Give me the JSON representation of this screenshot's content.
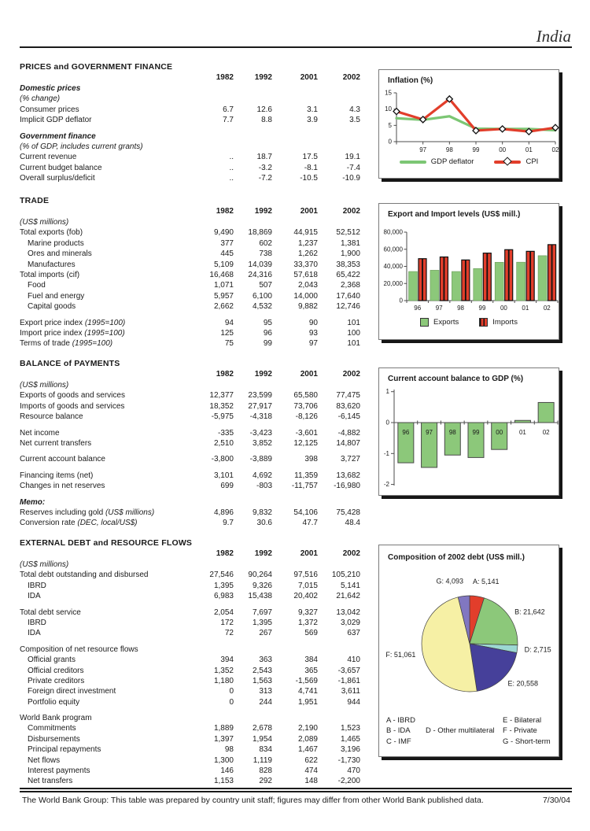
{
  "page": {
    "title": "India",
    "footer_note": "The World Bank Group: This table was prepared by country unit staff; figures may differ from other World Bank published data.",
    "footer_date": "7/30/04"
  },
  "columns": [
    "1982",
    "1992",
    "2001",
    "2002"
  ],
  "sections": [
    {
      "title": "PRICES and GOVERNMENT FINANCE",
      "rows": [
        {
          "label": "Domestic prices",
          "cls": "bi"
        },
        {
          "label": "(% change)",
          "cls": "i"
        },
        {
          "label": "Consumer prices",
          "values": [
            "6.7",
            "12.6",
            "3.1",
            "4.3"
          ]
        },
        {
          "label": "Implicit GDP deflator",
          "values": [
            "7.7",
            "8.8",
            "3.9",
            "3.5"
          ]
        },
        {
          "gap": true
        },
        {
          "label": "Government finance",
          "cls": "bi"
        },
        {
          "label": "(% of GDP, includes current grants)",
          "cls": "i"
        },
        {
          "label": "Current revenue",
          "values": [
            "..",
            "18.7",
            "17.5",
            "19.1"
          ]
        },
        {
          "label": "Current budget balance",
          "values": [
            "..",
            "-3.2",
            "-8.1",
            "-7.4"
          ]
        },
        {
          "label": "Overall surplus/deficit",
          "values": [
            "..",
            "-7.2",
            "-10.5",
            "-10.9"
          ]
        }
      ]
    },
    {
      "title": "TRADE",
      "rows": [
        {
          "label": "(US$ millions)",
          "cls": "i"
        },
        {
          "label": "Total exports (fob)",
          "values": [
            "9,490",
            "18,869",
            "44,915",
            "52,512"
          ]
        },
        {
          "label": "Marine products",
          "cls": "ind",
          "values": [
            "377",
            "602",
            "1,237",
            "1,381"
          ]
        },
        {
          "label": "Ores and minerals",
          "cls": "ind",
          "values": [
            "445",
            "738",
            "1,262",
            "1,900"
          ]
        },
        {
          "label": "Manufactures",
          "cls": "ind",
          "values": [
            "5,109",
            "14,039",
            "33,370",
            "38,353"
          ]
        },
        {
          "label": "Total imports (cif)",
          "values": [
            "16,468",
            "24,316",
            "57,618",
            "65,422"
          ]
        },
        {
          "label": "Food",
          "cls": "ind",
          "values": [
            "1,071",
            "507",
            "2,043",
            "2,368"
          ]
        },
        {
          "label": "Fuel and energy",
          "cls": "ind",
          "values": [
            "5,957",
            "6,100",
            "14,000",
            "17,640"
          ]
        },
        {
          "label": "Capital goods",
          "cls": "ind",
          "values": [
            "2,662",
            "4,532",
            "9,882",
            "12,746"
          ]
        },
        {
          "gap": true
        },
        {
          "label": "Export price index ",
          "suffix": "(1995=100)",
          "values": [
            "94",
            "95",
            "90",
            "101"
          ]
        },
        {
          "label": "Import price index ",
          "suffix": "(1995=100)",
          "values": [
            "125",
            "96",
            "93",
            "100"
          ]
        },
        {
          "label": "Terms of trade ",
          "suffix": "(1995=100)",
          "values": [
            "75",
            "99",
            "97",
            "101"
          ]
        }
      ]
    },
    {
      "title": "BALANCE of PAYMENTS",
      "rows": [
        {
          "label": "(US$ millions)",
          "cls": "i"
        },
        {
          "label": "Exports of goods and services",
          "values": [
            "12,377",
            "23,599",
            "65,580",
            "77,475"
          ]
        },
        {
          "label": "Imports of goods and services",
          "values": [
            "18,352",
            "27,917",
            "73,706",
            "83,620"
          ]
        },
        {
          "label": "Resource balance",
          "values": [
            "-5,975",
            "-4,318",
            "-8,126",
            "-6,145"
          ]
        },
        {
          "gap": true
        },
        {
          "label": "Net income",
          "values": [
            "-335",
            "-3,423",
            "-3,601",
            "-4,882"
          ]
        },
        {
          "label": "Net current transfers",
          "values": [
            "2,510",
            "3,852",
            "12,125",
            "14,807"
          ]
        },
        {
          "gap": true
        },
        {
          "label": "Current account balance",
          "values": [
            "-3,800",
            "-3,889",
            "398",
            "3,727"
          ]
        },
        {
          "gap": true
        },
        {
          "label": "Financing items (net)",
          "values": [
            "3,101",
            "4,692",
            "11,359",
            "13,682"
          ]
        },
        {
          "label": "Changes in net reserves",
          "values": [
            "699",
            "-803",
            "-11,757",
            "-16,980"
          ]
        },
        {
          "gap": true
        },
        {
          "label": "Memo:",
          "cls": "bi"
        },
        {
          "label": "Reserves including gold ",
          "suffix": "(US$ millions)",
          "values": [
            "4,896",
            "9,832",
            "54,106",
            "75,428"
          ]
        },
        {
          "label": "Conversion rate ",
          "suffix": "(DEC, local/US$)",
          "values": [
            "9.7",
            "30.6",
            "47.7",
            "48.4"
          ]
        }
      ]
    },
    {
      "title": "EXTERNAL DEBT and RESOURCE FLOWS",
      "rows": [
        {
          "label": "(US$ millions)",
          "cls": "i"
        },
        {
          "label": "Total debt outstanding and disbursed",
          "values": [
            "27,546",
            "90,264",
            "97,516",
            "105,210"
          ]
        },
        {
          "label": "IBRD",
          "cls": "ind",
          "values": [
            "1,395",
            "9,326",
            "7,015",
            "5,141"
          ]
        },
        {
          "label": "IDA",
          "cls": "ind",
          "values": [
            "6,983",
            "15,438",
            "20,402",
            "21,642"
          ]
        },
        {
          "gap": true
        },
        {
          "label": "Total debt service",
          "values": [
            "2,054",
            "7,697",
            "9,327",
            "13,042"
          ]
        },
        {
          "label": "IBRD",
          "cls": "ind",
          "values": [
            "172",
            "1,395",
            "1,372",
            "3,029"
          ]
        },
        {
          "label": "IDA",
          "cls": "ind",
          "values": [
            "72",
            "267",
            "569",
            "637"
          ]
        },
        {
          "gap": true
        },
        {
          "label": "Composition of net resource flows"
        },
        {
          "label": "Official grants",
          "cls": "ind",
          "values": [
            "394",
            "363",
            "384",
            "410"
          ]
        },
        {
          "label": "Official creditors",
          "cls": "ind",
          "values": [
            "1,352",
            "2,543",
            "365",
            "-3,657"
          ]
        },
        {
          "label": "Private creditors",
          "cls": "ind",
          "values": [
            "1,180",
            "1,563",
            "-1,569",
            "-1,861"
          ]
        },
        {
          "label": "Foreign direct investment",
          "cls": "ind",
          "values": [
            "0",
            "313",
            "4,741",
            "3,611"
          ]
        },
        {
          "label": "Portfolio equity",
          "cls": "ind",
          "values": [
            "0",
            "244",
            "1,951",
            "944"
          ]
        },
        {
          "gap": true
        },
        {
          "label": "World Bank program"
        },
        {
          "label": "Commitments",
          "cls": "ind",
          "values": [
            "1,889",
            "2,678",
            "2,190",
            "1,523"
          ]
        },
        {
          "label": "Disbursements",
          "cls": "ind",
          "values": [
            "1,397",
            "1,954",
            "2,089",
            "1,465"
          ]
        },
        {
          "label": "Principal repayments",
          "cls": "ind",
          "values": [
            "98",
            "834",
            "1,467",
            "3,196"
          ]
        },
        {
          "label": "Net flows",
          "cls": "ind",
          "values": [
            "1,300",
            "1,119",
            "622",
            "-1,730"
          ]
        },
        {
          "label": "Interest payments",
          "cls": "ind",
          "values": [
            "146",
            "828",
            "474",
            "470"
          ]
        },
        {
          "label": "Net transfers",
          "cls": "ind",
          "values": [
            "1,153",
            "292",
            "148",
            "-2,200"
          ]
        }
      ]
    }
  ],
  "chart_data": [
    {
      "type": "line",
      "title": "Inflation (%)",
      "x": [
        "96",
        "97",
        "98",
        "99",
        "00",
        "01",
        "02"
      ],
      "x_labels": [
        "",
        "97",
        "98",
        "99",
        "00",
        "01",
        "02"
      ],
      "ylim": [
        0,
        15
      ],
      "yticks": [
        0,
        5,
        10,
        15
      ],
      "ytick_labels": [
        "0",
        "5",
        "10",
        "15"
      ],
      "legend_position": "bottom",
      "series": [
        {
          "name": "GDP deflator",
          "color": "#7CC674",
          "values": [
            7.2,
            6.7,
            7.8,
            4.0,
            3.9,
            3.9,
            3.5
          ]
        },
        {
          "name": "CPI",
          "color": "#E23E2B",
          "marker": "diamond",
          "values": [
            9.3,
            6.8,
            13.1,
            3.4,
            3.9,
            3.1,
            4.3
          ]
        }
      ]
    },
    {
      "type": "bar",
      "title": "Export and Import levels (US$ mill.)",
      "categories": [
        "96",
        "97",
        "98",
        "99",
        "00",
        "01",
        "02"
      ],
      "ylim": [
        0,
        80000
      ],
      "yticks": [
        0,
        20000,
        40000,
        60000,
        80000
      ],
      "ytick_labels": [
        "0",
        "20,000",
        "40,000",
        "60,000",
        "80,000"
      ],
      "legend_position": "bottom",
      "series": [
        {
          "name": "Exports",
          "color": "#8CC87A",
          "values": [
            34000,
            35500,
            34000,
            37500,
            44800,
            44900,
            52500
          ]
        },
        {
          "name": "Imports",
          "color": "#E23E2B",
          "striped": true,
          "values": [
            49000,
            51000,
            47500,
            55500,
            59500,
            57600,
            65400
          ]
        }
      ]
    },
    {
      "type": "bar",
      "title": "Current account balance to GDP (%)",
      "categories": [
        "96",
        "97",
        "98",
        "99",
        "00",
        "01",
        "02"
      ],
      "ylim": [
        -2,
        1
      ],
      "yticks": [
        1,
        0,
        -1,
        -2
      ],
      "ytick_labels": [
        "1",
        "0",
        "-1",
        "-2"
      ],
      "color": "#8CC87A",
      "values": [
        -1.3,
        -1.45,
        -1.05,
        -1.13,
        -0.87,
        0.07,
        0.65
      ]
    },
    {
      "type": "pie",
      "title": "Composition of 2002 debt (US$ mill.)",
      "slices": [
        {
          "label": "A: 5,141",
          "value": 5141,
          "color": "#E23E2B"
        },
        {
          "label": "B: 21,642",
          "value": 21642,
          "color": "#8CC87A"
        },
        {
          "label": "D: 2,715",
          "value": 2715,
          "color": "#9CD8D2"
        },
        {
          "label": "E: 20,558",
          "value": 20558,
          "color": "#46409A"
        },
        {
          "label": "F: 51,061",
          "value": 51061,
          "color": "#F6F0A5"
        },
        {
          "label": "G: 4,093",
          "value": 4093,
          "color": "#8177C1"
        }
      ],
      "legend_columns": [
        [
          "A - IBRD",
          "B - IDA",
          "C - IMF"
        ],
        [
          "",
          "D - Other multilateral",
          ""
        ],
        [
          "E - Bilateral",
          "F - Private",
          "G - Short-term"
        ]
      ]
    }
  ]
}
